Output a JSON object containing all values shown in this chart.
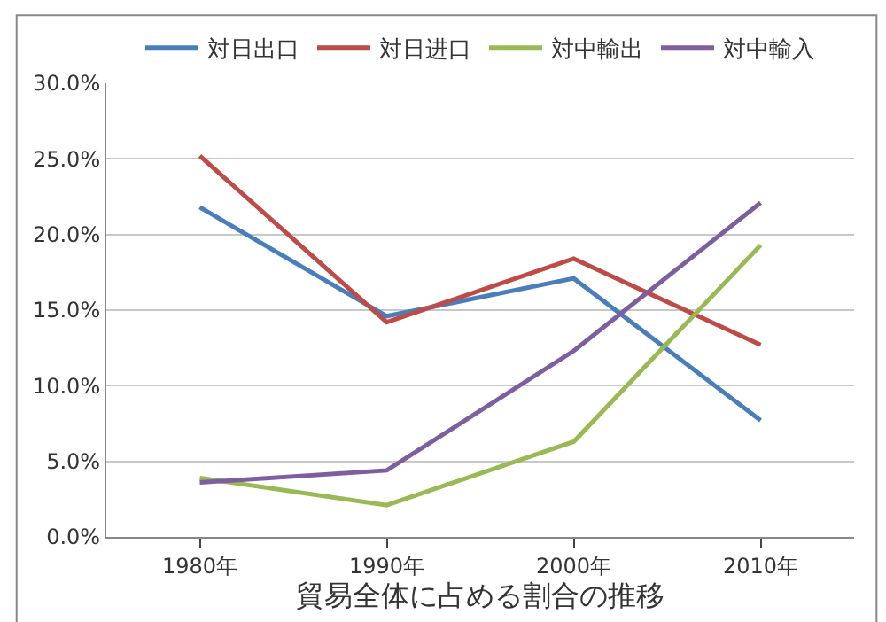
{
  "chart_data": {
    "type": "line",
    "xlabel": "貿易全体に占める割合の推移",
    "categories": [
      "1980年",
      "1990年",
      "2000年",
      "2010年"
    ],
    "series": [
      {
        "name": "対日出口",
        "color": "#4a7ebb",
        "values": [
          21.8,
          14.6,
          17.1,
          7.7
        ]
      },
      {
        "name": "対日进口",
        "color": "#be4b48",
        "values": [
          25.2,
          14.2,
          18.4,
          12.7
        ]
      },
      {
        "name": "対中輸出",
        "color": "#98b954",
        "values": [
          3.9,
          2.1,
          6.3,
          19.3
        ]
      },
      {
        "name": "対中輸入",
        "color": "#7d5fa0",
        "values": [
          3.6,
          4.4,
          12.3,
          22.1
        ]
      }
    ],
    "ylim": [
      0,
      30
    ],
    "yticks": [
      {
        "value": 0,
        "label": "0.0%"
      },
      {
        "value": 5,
        "label": "5.0%"
      },
      {
        "value": 10,
        "label": "10.0%"
      },
      {
        "value": 15,
        "label": "15.0%"
      },
      {
        "value": 20,
        "label": "20.0%"
      },
      {
        "value": 25,
        "label": "25.0%"
      },
      {
        "value": 30,
        "label": "30.0%"
      }
    ],
    "grid": "y",
    "legend": "top",
    "marker": "none",
    "line_style": "solid"
  }
}
